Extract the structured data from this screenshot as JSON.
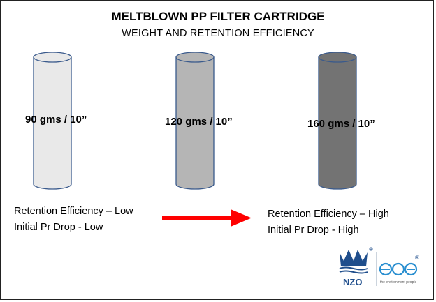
{
  "header": {
    "title": "MELTBLOWN PP FILTER CARTRIDGE",
    "subtitle": "WEIGHT AND RETENTION EFFICIENCY"
  },
  "cartridges": [
    {
      "label": "90 gms / 10”",
      "fill": "#e9e9e9"
    },
    {
      "label": "120 gms / 10”",
      "fill": "#b5b5b5"
    },
    {
      "label": "160 gms / 10”",
      "fill": "#737373"
    }
  ],
  "notes": {
    "low": {
      "line1": "Retention Efficiency – Low",
      "line2": "Initial Pr Drop - Low"
    },
    "high": {
      "line1": "Retention Efficiency – High",
      "line2": "Initial Pr Drop - High"
    }
  },
  "arrow": {
    "color": "#ff0000"
  },
  "logos": {
    "brand1": "NZO",
    "brand2": "the environment people",
    "icons": [
      "crown-icon",
      "ege-logo"
    ]
  },
  "colors": {
    "outline": "#3a5a8c",
    "border": "#222222"
  }
}
